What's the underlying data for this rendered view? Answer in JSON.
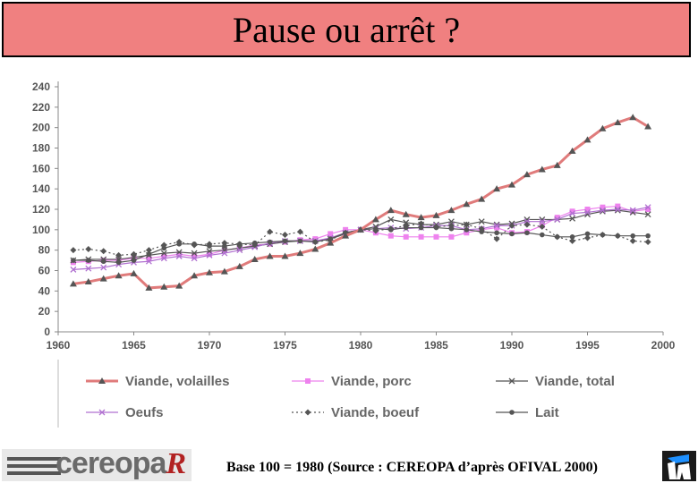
{
  "header": {
    "title": "Pause ou arrêt ?"
  },
  "footer": {
    "source": "Base 100 = 1980 (Source : CEREOPA d’après OFIVAL 2000)"
  },
  "logo": {
    "wordmark": "cereopa",
    "tail": "R"
  },
  "colors": {
    "title_bg": "#f08080",
    "volailles": "#e07b7b",
    "porc": "#ee82ee",
    "other": "#555555"
  },
  "chart_data": {
    "type": "line",
    "title": "",
    "xlabel": "",
    "ylabel": "",
    "xlim": [
      1960,
      2000
    ],
    "ylim": [
      0,
      240
    ],
    "xticks": [
      1960,
      1965,
      1970,
      1975,
      1980,
      1985,
      1990,
      1995,
      2000
    ],
    "yticks": [
      0,
      20,
      40,
      60,
      80,
      100,
      120,
      140,
      160,
      180,
      200,
      220,
      240
    ],
    "grid": false,
    "legend_position": "bottom",
    "x": [
      1961,
      1962,
      1963,
      1964,
      1965,
      1966,
      1967,
      1968,
      1969,
      1970,
      1971,
      1972,
      1973,
      1974,
      1975,
      1976,
      1977,
      1978,
      1979,
      1980,
      1981,
      1982,
      1983,
      1984,
      1985,
      1986,
      1987,
      1988,
      1989,
      1990,
      1991,
      1992,
      1993,
      1994,
      1995,
      1996,
      1997,
      1998,
      1999
    ],
    "series": [
      {
        "name": "Viande, volailles",
        "marker": "triangle",
        "dash": "solid",
        "values": [
          47,
          49,
          52,
          55,
          57,
          43,
          44,
          45,
          55,
          58,
          59,
          64,
          71,
          74,
          74,
          77,
          81,
          87,
          94,
          100,
          110,
          119,
          115,
          112,
          114,
          119,
          125,
          130,
          140,
          144,
          154,
          159,
          163,
          177,
          188,
          199,
          205,
          210,
          201
        ]
      },
      {
        "name": "Viande, porc",
        "marker": "square",
        "dash": "solid",
        "values": [
          68,
          69,
          70,
          70,
          72,
          72,
          74,
          76,
          74,
          76,
          80,
          82,
          85,
          86,
          88,
          90,
          91,
          96,
          100,
          100,
          97,
          94,
          93,
          93,
          93,
          93,
          97,
          100,
          102,
          97,
          98,
          104,
          112,
          118,
          120,
          122,
          123,
          118,
          120
        ]
      },
      {
        "name": "Viande, total",
        "marker": "x",
        "dash": "solid",
        "values": [
          70,
          71,
          71,
          71,
          73,
          75,
          77,
          78,
          77,
          79,
          80,
          82,
          84,
          86,
          88,
          89,
          89,
          91,
          96,
          100,
          103,
          110,
          107,
          105,
          105,
          108,
          105,
          108,
          105,
          106,
          110,
          110,
          110,
          111,
          115,
          118,
          119,
          117,
          115
        ]
      },
      {
        "name": "Oeufs",
        "marker": "x",
        "dash": "solid",
        "values": [
          61,
          62,
          63,
          66,
          68,
          69,
          72,
          74,
          72,
          75,
          77,
          80,
          83,
          87,
          89,
          89,
          89,
          92,
          97,
          100,
          101,
          102,
          101,
          102,
          104,
          104,
          100,
          101,
          104,
          104,
          108,
          108,
          110,
          116,
          117,
          119,
          120,
          119,
          122
        ]
      },
      {
        "name": "Viande, boeuf",
        "marker": "diamond",
        "dash": "dotted",
        "values": [
          80,
          81,
          79,
          75,
          76,
          80,
          85,
          88,
          85,
          86,
          87,
          86,
          85,
          98,
          95,
          98,
          88,
          90,
          97,
          100,
          99,
          101,
          104,
          106,
          103,
          104,
          105,
          101,
          91,
          104,
          105,
          103,
          93,
          89,
          92,
          95,
          94,
          89,
          88
        ]
      },
      {
        "name": "Lait",
        "marker": "circle",
        "dash": "solid",
        "values": [
          70,
          70,
          69,
          68,
          70,
          76,
          82,
          86,
          86,
          84,
          84,
          86,
          87,
          88,
          89,
          89,
          88,
          91,
          97,
          100,
          101,
          100,
          102,
          102,
          102,
          101,
          100,
          98,
          97,
          96,
          97,
          95,
          93,
          93,
          96,
          95,
          94,
          94,
          94
        ]
      }
    ]
  }
}
